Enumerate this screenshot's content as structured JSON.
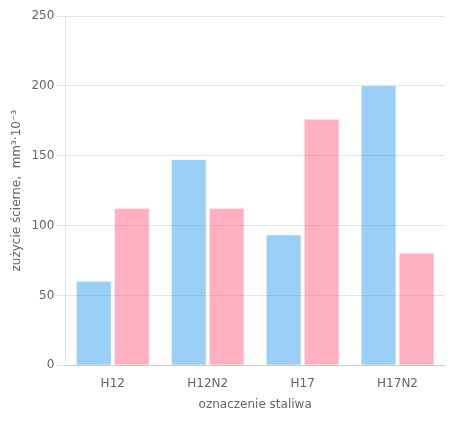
{
  "chart_data": {
    "type": "bar",
    "categories": [
      "H12",
      "H12N2",
      "H17",
      "H17N2"
    ],
    "series": [
      {
        "values": [
          60,
          147,
          93,
          200
        ]
      },
      {
        "values": [
          112,
          112,
          176,
          80
        ]
      }
    ],
    "xlabel": "oznaczenie staliwa",
    "ylabel": "zużycie ścierne,  mm³·10⁻³",
    "ylim": [
      0,
      250
    ],
    "yticks": [
      0,
      50,
      100,
      150,
      200,
      250
    ],
    "grid": true
  }
}
